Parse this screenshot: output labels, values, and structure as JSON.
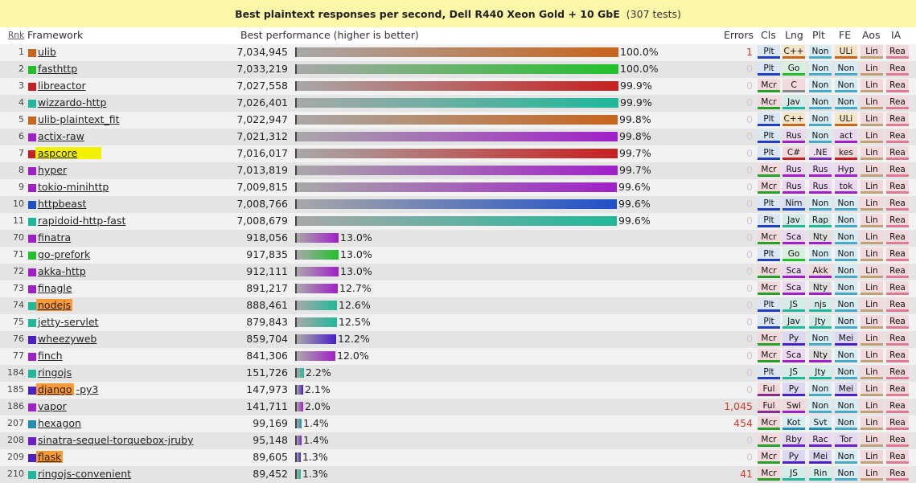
{
  "title": {
    "main": "Best plaintext responses per second, Dell R440 Xeon Gold + 10 GbE",
    "tests": "(307 tests)"
  },
  "headers": {
    "rank": "Rnk",
    "framework": "Framework",
    "perf": "Best performance (higher is better)",
    "errors": "Errors",
    "cls": "Cls",
    "lng": "Lng",
    "plt": "Plt",
    "fe": "FE",
    "aos": "Aos",
    "ia": "IA"
  },
  "colors": {
    "Mcr": [
      "#f3cdd4",
      "#2ca02c"
    ],
    "Plt": [
      "#cde3f3",
      "#1f3fbf"
    ],
    "Ful": [
      "#f3cdd4",
      "#8a2b8a"
    ],
    "Non": [
      "#cde3f3",
      "#4da6c8"
    ]
  },
  "rows": [
    {
      "rank": "1",
      "name": "ulib",
      "color": "#c8641c",
      "value": "7,034,945",
      "pct": "100.0%",
      "frac": 1.0,
      "err": "1",
      "errbad": true,
      "cls": "Plt",
      "lng": "C++",
      "plt": "Non",
      "fe": "ULi",
      "aos": "Lin",
      "ia": "Rea"
    },
    {
      "rank": "2",
      "name": "fasthttp",
      "color": "#22c02c",
      "value": "7,033,219",
      "pct": "100.0%",
      "frac": 1.0,
      "err": "0",
      "errbad": false,
      "cls": "Plt",
      "lng": "Go",
      "plt": "Non",
      "fe": "Non",
      "aos": "Lin",
      "ia": "Rea"
    },
    {
      "rank": "3",
      "name": "libreactor",
      "color": "#c82020",
      "value": "7,027,558",
      "pct": "99.9%",
      "frac": 0.999,
      "err": "0",
      "errbad": false,
      "cls": "Mcr",
      "lng": "C",
      "plt": "Non",
      "fe": "Non",
      "aos": "Lin",
      "ia": "Rea"
    },
    {
      "rank": "4",
      "name": "wizzardo-http",
      "color": "#1fb89a",
      "value": "7,026,401",
      "pct": "99.9%",
      "frac": 0.999,
      "err": "0",
      "errbad": false,
      "cls": "Mcr",
      "lng": "Jav",
      "plt": "Non",
      "fe": "Non",
      "aos": "Lin",
      "ia": "Rea"
    },
    {
      "rank": "5",
      "name": "ulib-plaintext_fit",
      "color": "#c8641c",
      "value": "7,022,947",
      "pct": "99.8%",
      "frac": 0.998,
      "err": "0",
      "errbad": false,
      "cls": "Plt",
      "lng": "C++",
      "plt": "Non",
      "fe": "ULi",
      "aos": "Lin",
      "ia": "Rea"
    },
    {
      "rank": "6",
      "name": "actix-raw",
      "color": "#a020c8",
      "value": "7,021,312",
      "pct": "99.8%",
      "frac": 0.998,
      "err": "0",
      "errbad": false,
      "cls": "Plt",
      "lng": "Rus",
      "plt": "Non",
      "fe": "act",
      "aos": "Lin",
      "ia": "Rea"
    },
    {
      "rank": "7",
      "name": "aspcore",
      "color": "#c82020",
      "value": "7,016,017",
      "pct": "99.7%",
      "frac": 0.997,
      "err": "0",
      "errbad": false,
      "cls": "Plt",
      "lng": "C#",
      "plt": ".NE",
      "fe": "kes",
      "aos": "Lin",
      "ia": "Rea",
      "hl": "yellow"
    },
    {
      "rank": "8",
      "name": "hyper",
      "color": "#a020c8",
      "value": "7,013,819",
      "pct": "99.7%",
      "frac": 0.997,
      "err": "0",
      "errbad": false,
      "cls": "Mcr",
      "lng": "Rus",
      "plt": "Rus",
      "fe": "Hyp",
      "aos": "Lin",
      "ia": "Rea"
    },
    {
      "rank": "9",
      "name": "tokio-minihttp",
      "color": "#a020c8",
      "value": "7,009,815",
      "pct": "99.6%",
      "frac": 0.996,
      "err": "0",
      "errbad": false,
      "cls": "Mcr",
      "lng": "Rus",
      "plt": "Rus",
      "fe": "tok",
      "aos": "Lin",
      "ia": "Rea"
    },
    {
      "rank": "10",
      "name": "httpbeast",
      "color": "#2050c8",
      "value": "7,008,766",
      "pct": "99.6%",
      "frac": 0.996,
      "err": "0",
      "errbad": false,
      "cls": "Plt",
      "lng": "Nim",
      "plt": "Non",
      "fe": "Non",
      "aos": "Lin",
      "ia": "Rea"
    },
    {
      "rank": "11",
      "name": "rapidoid-http-fast",
      "color": "#1fb89a",
      "value": "7,008,679",
      "pct": "99.6%",
      "frac": 0.996,
      "err": "0",
      "errbad": false,
      "cls": "Plt",
      "lng": "Jav",
      "plt": "Rap",
      "fe": "Non",
      "aos": "Lin",
      "ia": "Rea"
    },
    {
      "rank": "70",
      "name": "finatra",
      "color": "#a020c8",
      "value": "918,056",
      "pct": "13.0%",
      "frac": 0.13,
      "err": "0",
      "errbad": false,
      "cls": "Mcr",
      "lng": "Sca",
      "plt": "Nty",
      "fe": "Non",
      "aos": "Lin",
      "ia": "Rea"
    },
    {
      "rank": "71",
      "name": "go-prefork",
      "color": "#22c02c",
      "value": "917,835",
      "pct": "13.0%",
      "frac": 0.13,
      "err": "0",
      "errbad": false,
      "cls": "Plt",
      "lng": "Go",
      "plt": "Non",
      "fe": "Non",
      "aos": "Lin",
      "ia": "Rea"
    },
    {
      "rank": "72",
      "name": "akka-http",
      "color": "#a020c8",
      "value": "912,111",
      "pct": "13.0%",
      "frac": 0.13,
      "err": "0",
      "errbad": false,
      "cls": "Mcr",
      "lng": "Sca",
      "plt": "Akk",
      "fe": "Non",
      "aos": "Lin",
      "ia": "Rea"
    },
    {
      "rank": "73",
      "name": "finagle",
      "color": "#a020c8",
      "value": "891,217",
      "pct": "12.7%",
      "frac": 0.127,
      "err": "0",
      "errbad": false,
      "cls": "Mcr",
      "lng": "Sca",
      "plt": "Nty",
      "fe": "Non",
      "aos": "Lin",
      "ia": "Rea"
    },
    {
      "rank": "74",
      "name": "nodejs",
      "color": "#1fb89a",
      "value": "888,461",
      "pct": "12.6%",
      "frac": 0.126,
      "err": "0",
      "errbad": false,
      "cls": "Plt",
      "lng": "JS",
      "plt": "njs",
      "fe": "Non",
      "aos": "Lin",
      "ia": "Rea",
      "hl": "orange"
    },
    {
      "rank": "75",
      "name": "jetty-servlet",
      "color": "#1fb89a",
      "value": "879,843",
      "pct": "12.5%",
      "frac": 0.125,
      "err": "0",
      "errbad": false,
      "cls": "Plt",
      "lng": "Jav",
      "plt": "Jty",
      "fe": "Non",
      "aos": "Lin",
      "ia": "Rea"
    },
    {
      "rank": "76",
      "name": "wheezyweb",
      "color": "#4a20c8",
      "value": "859,704",
      "pct": "12.2%",
      "frac": 0.122,
      "err": "0",
      "errbad": false,
      "cls": "Mcr",
      "lng": "Py",
      "plt": "Non",
      "fe": "Mei",
      "aos": "Lin",
      "ia": "Rea"
    },
    {
      "rank": "77",
      "name": "finch",
      "color": "#a020c8",
      "value": "841,306",
      "pct": "12.0%",
      "frac": 0.12,
      "err": "0",
      "errbad": false,
      "cls": "Mcr",
      "lng": "Sca",
      "plt": "Nty",
      "fe": "Non",
      "aos": "Lin",
      "ia": "Rea"
    },
    {
      "rank": "184",
      "name": "ringojs",
      "color": "#1fb89a",
      "value": "151,726",
      "pct": "2.2%",
      "frac": 0.022,
      "err": "0",
      "errbad": false,
      "cls": "Plt",
      "lng": "JS",
      "plt": "Jty",
      "fe": "Non",
      "aos": "Lin",
      "ia": "Rea"
    },
    {
      "rank": "185",
      "name": "django",
      "suffix": "-py3",
      "color": "#4a20c8",
      "value": "147,973",
      "pct": "2.1%",
      "frac": 0.021,
      "err": "0",
      "errbad": false,
      "cls": "Ful",
      "lng": "Py",
      "plt": "Non",
      "fe": "Mei",
      "aos": "Lin",
      "ia": "Rea",
      "hl": "orange"
    },
    {
      "rank": "186",
      "name": "vapor",
      "color": "#a020c8",
      "value": "141,711",
      "pct": "2.0%",
      "frac": 0.02,
      "err": "1,045",
      "errbad": true,
      "cls": "Ful",
      "lng": "Swi",
      "plt": "Non",
      "fe": "Non",
      "aos": "Lin",
      "ia": "Rea"
    },
    {
      "rank": "207",
      "name": "hexagon",
      "color": "#2090b8",
      "value": "99,169",
      "pct": "1.4%",
      "frac": 0.014,
      "err": "454",
      "errbad": true,
      "cls": "Mcr",
      "lng": "Kot",
      "plt": "Svt",
      "fe": "Non",
      "aos": "Lin",
      "ia": "Rea"
    },
    {
      "rank": "208",
      "name": "sinatra-sequel-torquebox-jruby",
      "color": "#6a20c8",
      "value": "95,148",
      "pct": "1.4%",
      "frac": 0.014,
      "err": "0",
      "errbad": false,
      "cls": "Mcr",
      "lng": "Rby",
      "plt": "Rac",
      "fe": "Tor",
      "aos": "Lin",
      "ia": "Rea"
    },
    {
      "rank": "209",
      "name": "flask",
      "color": "#4a20c8",
      "value": "89,605",
      "pct": "1.3%",
      "frac": 0.013,
      "err": "0",
      "errbad": false,
      "cls": "Mcr",
      "lng": "Py",
      "plt": "Mei",
      "fe": "Non",
      "aos": "Lin",
      "ia": "Rea",
      "hl": "orange"
    },
    {
      "rank": "210",
      "name": "ringojs-convenient",
      "color": "#1fb89a",
      "value": "89,452",
      "pct": "1.3%",
      "frac": 0.013,
      "err": "41",
      "errbad": true,
      "cls": "Mcr",
      "lng": "JS",
      "plt": "Rin",
      "fe": "Non",
      "aos": "Lin",
      "ia": "Rea"
    }
  ]
}
